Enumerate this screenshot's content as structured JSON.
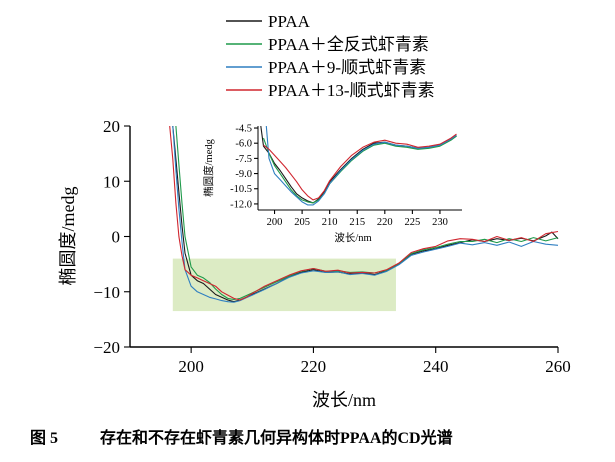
{
  "colors": {
    "PPAA": "#1a1a1a",
    "all_trans": "#1f9a4a",
    "cis9": "#2f7fc1",
    "cis13": "#d0262f",
    "highlight": "#dcebc4"
  },
  "legend": [
    "PPAA",
    "PPAA＋全反式虾青素",
    "PPAA＋9-顺式虾青素",
    "PPAA＋13-顺式虾青素"
  ],
  "caption": {
    "label": "图 5",
    "text": "存在和不存在虾青素几何异构体时PPAA的CD光谱"
  },
  "chart_data": [
    {
      "type": "line",
      "xlabel": "波长/nm",
      "ylabel": "椭圆度/medg",
      "xlim": [
        190,
        260
      ],
      "ylim": [
        -20,
        20
      ],
      "xticks": [
        200,
        220,
        240,
        260
      ],
      "yticks": [
        20,
        10,
        0,
        -10,
        -20
      ],
      "ytick_labels": [
        "20",
        "10",
        "0",
        "−10",
        "−20"
      ],
      "highlight_region": {
        "x": [
          197,
          233.5
        ],
        "y": [
          -13.5,
          -4
        ]
      },
      "series": [
        {
          "name": "PPAA",
          "color": "#1a1a1a",
          "x": [
            197,
            197.5,
            198,
            198.5,
            199,
            200,
            201,
            202,
            203,
            204,
            205,
            206,
            207,
            208,
            209,
            210,
            212,
            214,
            216,
            218,
            220,
            222,
            224,
            226,
            228,
            230,
            232,
            234,
            236,
            238,
            240,
            242,
            244,
            246,
            248,
            250,
            252,
            254,
            256,
            258,
            259,
            260
          ],
          "y": [
            20,
            14,
            8,
            2,
            -3,
            -7,
            -8,
            -8.5,
            -9.5,
            -10.5,
            -11,
            -11.5,
            -11.8,
            -11.5,
            -11,
            -10.5,
            -9.5,
            -8.5,
            -7.3,
            -6.5,
            -6,
            -6.5,
            -6.4,
            -6.8,
            -6.6,
            -6.9,
            -6.2,
            -5,
            -3.2,
            -2.6,
            -2.2,
            -1.6,
            -1.1,
            -0.6,
            -0.9,
            -0.4,
            -0.7,
            -0.3,
            -0.8,
            0.1,
            0.8,
            -0.4
          ]
        },
        {
          "name": "PPAA＋全反式虾青素",
          "color": "#1f9a4a",
          "x": [
            197.5,
            198,
            198.5,
            199,
            200,
            201,
            202,
            203,
            204,
            205,
            206,
            207,
            208,
            209,
            210,
            212,
            214,
            216,
            218,
            220,
            222,
            224,
            226,
            228,
            230,
            232,
            234,
            236,
            238,
            240,
            242,
            244,
            246,
            248,
            250,
            252,
            254,
            256,
            258,
            260
          ],
          "y": [
            20,
            13,
            6,
            0,
            -5.5,
            -7,
            -7.5,
            -8.3,
            -9.5,
            -10.5,
            -11.2,
            -11.4,
            -11.2,
            -10.7,
            -10.2,
            -9.2,
            -8.2,
            -7.2,
            -6.3,
            -5.8,
            -6.3,
            -6.2,
            -6.5,
            -6.4,
            -6.6,
            -6.1,
            -4.9,
            -3.1,
            -2.4,
            -2,
            -1.4,
            -0.9,
            -0.9,
            -0.5,
            -1.1,
            -0.4,
            -0.9,
            -0.2,
            -0.8,
            -0.2
          ]
        },
        {
          "name": "PPAA＋9-顺式虾青素",
          "color": "#2f7fc1",
          "x": [
            197,
            197.5,
            198,
            198.5,
            199,
            200,
            201,
            202,
            203,
            204,
            205,
            206,
            207,
            208,
            209,
            210,
            212,
            214,
            216,
            218,
            220,
            222,
            224,
            226,
            228,
            230,
            232,
            234,
            236,
            238,
            240,
            242,
            244,
            246,
            248,
            250,
            252,
            254,
            256,
            258,
            260
          ],
          "y": [
            20,
            12,
            5,
            -1,
            -6,
            -9,
            -10,
            -10.5,
            -11,
            -11.3,
            -11.6,
            -11.8,
            -11.9,
            -11.6,
            -11.1,
            -10.6,
            -9.6,
            -8.5,
            -7.4,
            -6.6,
            -6.2,
            -6.5,
            -6.4,
            -6.9,
            -6.7,
            -7,
            -6.3,
            -5.1,
            -3.4,
            -2.8,
            -2.3,
            -1.8,
            -1.2,
            -1.5,
            -1.1,
            -1.6,
            -1,
            -1.8,
            -0.9,
            -1.4,
            -1.6
          ]
        },
        {
          "name": "PPAA＋13-顺式虾青素",
          "color": "#d0262f",
          "x": [
            196.5,
            197,
            197.5,
            198,
            198.5,
            199,
            200,
            201,
            202,
            203,
            204,
            205,
            206,
            207,
            208,
            209,
            210,
            212,
            214,
            216,
            218,
            220,
            222,
            224,
            226,
            228,
            230,
            232,
            234,
            236,
            238,
            240,
            242,
            244,
            246,
            248,
            250,
            252,
            254,
            256,
            258,
            260
          ],
          "y": [
            20,
            14,
            6,
            0,
            -3.5,
            -6,
            -7,
            -7.5,
            -8,
            -8.5,
            -9,
            -10,
            -10.6,
            -11.2,
            -11.5,
            -11,
            -10.3,
            -9,
            -8,
            -7,
            -6.2,
            -5.8,
            -6.3,
            -6.1,
            -6.6,
            -6.5,
            -6.6,
            -6,
            -4.8,
            -2.9,
            -2.2,
            -1.8,
            -0.8,
            -0.4,
            -0.5,
            -0.9,
            0,
            -0.7,
            -0.2,
            -0.9,
            0.5,
            0.9
          ]
        }
      ]
    },
    {
      "type": "line",
      "panel": "inset",
      "xlabel": "波长/nm",
      "ylabel": "椭圆度/medg",
      "xlim": [
        197,
        234
      ],
      "ylim": [
        -12.6,
        -4.3
      ],
      "xticks": [
        200,
        205,
        210,
        215,
        220,
        225,
        230
      ],
      "yticks": [
        -4.5,
        -6.0,
        -7.5,
        -9.0,
        -10.5,
        -12.0
      ],
      "ytick_labels": [
        "-4.5",
        "-6.0",
        "-7.5",
        "-9.0",
        "-10.5",
        "-12.0"
      ],
      "series": [
        {
          "name": "PPAA",
          "color": "#1a1a1a",
          "x": [
            197.5,
            198,
            199,
            200,
            201,
            202,
            203,
            204,
            205,
            206,
            207,
            208,
            209,
            210,
            212,
            214,
            216,
            218,
            220,
            222,
            224,
            226,
            228,
            230,
            232,
            233
          ],
          "y": [
            -4.3,
            -6.3,
            -7.0,
            -8.0,
            -8.7,
            -9.5,
            -10.3,
            -11.0,
            -11.4,
            -11.7,
            -11.9,
            -11.5,
            -10.8,
            -9.8,
            -8.6,
            -7.5,
            -6.6,
            -6.0,
            -5.9,
            -6.2,
            -6.3,
            -6.5,
            -6.4,
            -6.2,
            -5.6,
            -5.3
          ]
        },
        {
          "name": "PPAA＋全反式虾青素",
          "color": "#1f9a4a",
          "x": [
            198,
            199,
            200,
            201,
            202,
            203,
            204,
            205,
            206,
            207,
            208,
            209,
            210,
            212,
            214,
            216,
            218,
            220,
            222,
            224,
            226,
            228,
            230,
            232,
            233
          ],
          "y": [
            -5.5,
            -7.0,
            -8.2,
            -9.0,
            -9.8,
            -10.6,
            -11.2,
            -11.6,
            -11.8,
            -11.9,
            -11.6,
            -11.0,
            -10.0,
            -8.8,
            -7.7,
            -6.8,
            -6.2,
            -6.0,
            -6.3,
            -6.4,
            -6.6,
            -6.5,
            -6.3,
            -5.7,
            -5.3
          ]
        },
        {
          "name": "PPAA＋9-顺式虾青素",
          "color": "#2f7fc1",
          "x": [
            198.5,
            199,
            200,
            201,
            202,
            203,
            204,
            205,
            206,
            207,
            208,
            209,
            210,
            212,
            214,
            216,
            218,
            220,
            222,
            224,
            226,
            228,
            230,
            232,
            233
          ],
          "y": [
            -4.3,
            -7.5,
            -9.0,
            -9.6,
            -10.2,
            -10.8,
            -11.3,
            -11.8,
            -12.1,
            -12.1,
            -11.7,
            -11.0,
            -10.0,
            -8.7,
            -7.6,
            -6.7,
            -6.1,
            -5.9,
            -6.2,
            -6.3,
            -6.5,
            -6.4,
            -6.2,
            -5.6,
            -5.2
          ]
        },
        {
          "name": "PPAA＋13-顺式虾青素",
          "color": "#d0262f",
          "x": [
            198,
            199,
            200,
            201,
            202,
            203,
            204,
            205,
            206,
            207,
            208,
            209,
            210,
            212,
            214,
            216,
            218,
            220,
            222,
            224,
            226,
            228,
            230,
            232,
            233
          ],
          "y": [
            -6.2,
            -6.6,
            -7.2,
            -7.8,
            -8.4,
            -9.1,
            -9.8,
            -10.6,
            -11.2,
            -11.6,
            -11.4,
            -10.7,
            -9.7,
            -8.3,
            -7.2,
            -6.4,
            -5.9,
            -5.7,
            -6.0,
            -6.1,
            -6.4,
            -6.3,
            -6.1,
            -5.5,
            -5.1
          ]
        }
      ]
    }
  ]
}
